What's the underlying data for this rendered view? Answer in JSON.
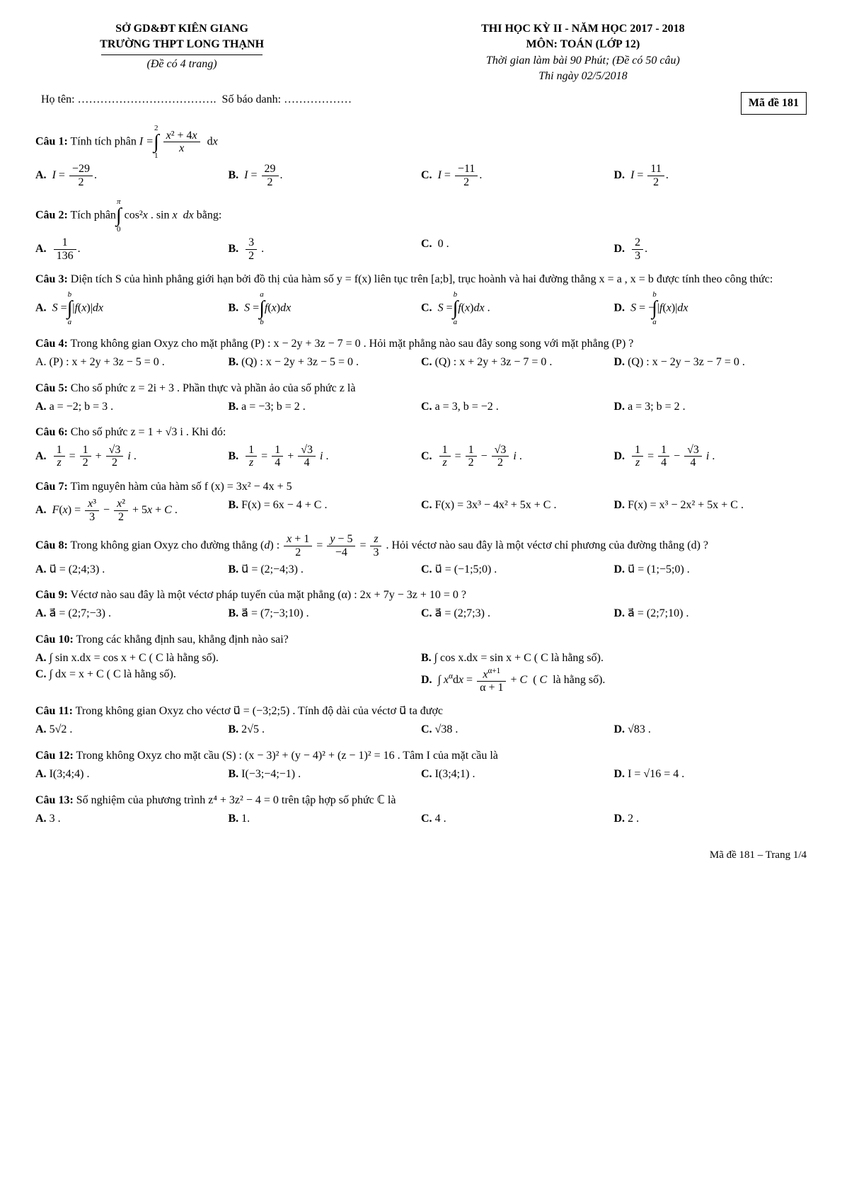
{
  "header": {
    "dept": "SỞ GD&ĐT KIÊN GIANG",
    "school": "TRƯỜNG THPT LONG THẠNH",
    "pages": "(Đề có 4 trang)",
    "exam_title": "THI HỌC KỲ II - NĂM HỌC 2017 - 2018",
    "subject": "MÔN: TOÁN (LỚP 12)",
    "duration": "Thời gian làm bài 90 Phút; (Đề có 50 câu)",
    "date": "Thi ngày 02/5/2018",
    "name_label": "Họ tên: ……………………………….",
    "id_label": "Số báo danh: ………………",
    "code": "Mã đề 181"
  },
  "q1": {
    "label": "Câu 1:",
    "text": "Tính tích phân ",
    "A": "A.",
    "B": "B.",
    "C": "C.",
    "D": "D."
  },
  "q2": {
    "label": "Câu 2:",
    "text": "Tích phân ",
    "tail": " bằng:",
    "A": "A.",
    "B": "B.",
    "C": "C.",
    "D": "D.",
    "C_val": "0 .",
    "D_num": "2",
    "D_den": "3"
  },
  "q3": {
    "label": "Câu 3:",
    "text": "Diện tích S của hình phẳng giới hạn bởi đồ thị của hàm số  y = f(x)  liên tục trên [a;b], trục hoành và hai đường thẳng  x = a , x = b  được tính theo công thức:",
    "A": "A.",
    "B": "B.",
    "C": "C.",
    "D": "D."
  },
  "q4": {
    "label": "Câu 4:",
    "text": "Trong không gian  Oxyz  cho mặt phẳng  (P) : x − 2y + 3z − 7 = 0 . Hỏi mặt phẳng nào sau đây song song với mặt phẳng (P) ?",
    "A": "A.  (P) : x + 2y + 3z − 5 = 0 .",
    "B": "B.  (Q) : x − 2y + 3z − 5 = 0 .",
    "C": "C.  (Q) : x + 2y + 3z − 7 = 0 .",
    "D": "D.  (Q) : x − 2y − 3z − 7 = 0 ."
  },
  "q5": {
    "label": "Câu 5:",
    "text": "Cho số phức  z = 2i + 3 . Phần thực và phần ảo của số phức z là",
    "A": "A.  a = −2; b = 3 .",
    "B": "B.  a = −3; b = 2 .",
    "C": "C.  a = 3, b = −2 .",
    "D": "D.  a = 3; b = 2 ."
  },
  "q6": {
    "label": "Câu 6:",
    "text": "Cho số phức  z = 1 + √3 i . Khi đó:",
    "A": "A.",
    "B": "B.",
    "C": "C.",
    "D": "D."
  },
  "q7": {
    "label": "Câu 7:",
    "text": "Tìm nguyên hàm của hàm số  f (x) = 3x² − 4x + 5",
    "A": "A.",
    "B": "B.  F(x) = 6x − 4 + C .",
    "C": "C.  F(x) = 3x³ − 4x² +  5x + C .",
    "D": "D.  F(x) = x³ − 2x² +  5x + C  ."
  },
  "q8": {
    "label": "Câu 8:",
    "text": "Trong không gian  Oxyz  cho đường thẳng ",
    "tail": ". Hỏi véctơ nào sau đây là một véctơ chỉ phương của đường thẳng  (d)  ?",
    "A": "A.  u⃗ = (2;4;3) .",
    "B": "B.  u⃗ = (2;−4;3) .",
    "C": "C.  u⃗ = (−1;5;0) .",
    "D": "D.  u⃗ = (1;−5;0) ."
  },
  "q9": {
    "label": "Câu 9:",
    "text": "Véctơ nào sau đây là một véctơ pháp tuyến của mặt phẳng  (α) : 2x + 7y − 3z + 10 = 0 ?",
    "A": "A.  a⃗ = (2;7;−3) .",
    "B": "B.  a⃗ = (7;−3;10) .",
    "C": "C.  a⃗ = (2;7;3) .",
    "D": "D.  a⃗ = (2;7;10)  ."
  },
  "q10": {
    "label": "Câu 10:",
    "text": "Trong các khẳng định sau, khẳng định nào sai?",
    "A": "A.  ∫ sin x.dx = cos x + C  ( C  là hằng số).",
    "B": "B.  ∫ cos x.dx = sin x + C  ( C  là hằng số).",
    "C": "C.  ∫ dx = x + C  ( C  là hằng số).",
    "D": "D."
  },
  "q11": {
    "label": "Câu 11:",
    "text": "Trong không gian  Oxyz  cho véctơ  u⃗ = (−3;2;5) . Tính độ dài của véctơ  u⃗  ta được",
    "A": "A.  5√2 .",
    "B": "B.  2√5 .",
    "C": "C.  √38 .",
    "D": "D.  √83 ."
  },
  "q12": {
    "label": "Câu 12:",
    "text": "Trong không  Oxyz  cho mặt cầu  (S) : (x − 3)² + (y − 4)² + (z − 1)² = 16 . Tâm I của mặt cầu là",
    "A": "A.  I(3;4;4) .",
    "B": "B.  I(−3;−4;−1) .",
    "C": "C.  I(3;4;1) .",
    "D": "D.  I = √16 = 4 ."
  },
  "q13": {
    "label": "Câu 13:",
    "text": "Số nghiệm của  phương trình  z⁴ + 3z² − 4 = 0 trên tập hợp số phức  ℂ  là",
    "A": "A.  3 .",
    "B": "B.  1.",
    "C": "C.  4 .",
    "D": "D.  2 ."
  },
  "footer": "Mã đề 181 – Trang 1/4"
}
